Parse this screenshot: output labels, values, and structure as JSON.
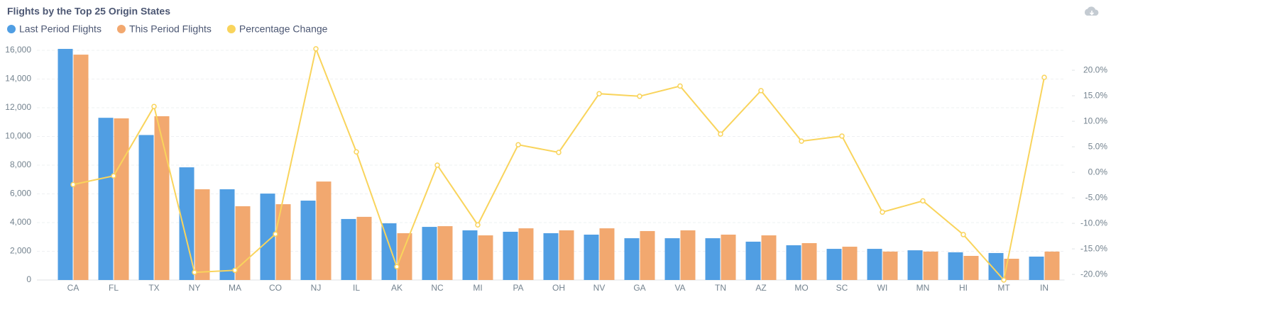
{
  "chart_data": {
    "type": "bar-line",
    "title": "Flights by the Top 25 Origin States",
    "categories": [
      "CA",
      "FL",
      "TX",
      "NY",
      "MA",
      "CO",
      "NJ",
      "IL",
      "AK",
      "NC",
      "MI",
      "PA",
      "OH",
      "NV",
      "GA",
      "VA",
      "TN",
      "AZ",
      "MO",
      "SC",
      "WI",
      "MN",
      "HI",
      "MT",
      "IN"
    ],
    "series": [
      {
        "name": "Last Period Flights",
        "type": "bar",
        "color": "#509ee3",
        "values": [
          16100,
          11300,
          10100,
          7850,
          6320,
          6020,
          5530,
          4250,
          3950,
          3700,
          3460,
          3360,
          3260,
          3160,
          2910,
          2910,
          2910,
          2670,
          2420,
          2170,
          2170,
          2070,
          1930,
          1880,
          1630
        ]
      },
      {
        "name": "This Period Flights",
        "type": "bar",
        "color": "#f2a86f",
        "values": [
          15700,
          11260,
          11410,
          6320,
          5140,
          5280,
          6860,
          4400,
          3260,
          3750,
          3110,
          3600,
          3460,
          3600,
          3410,
          3460,
          3160,
          3110,
          2570,
          2320,
          1980,
          1980,
          1680,
          1480,
          1980
        ]
      },
      {
        "name": "Percentage Change",
        "type": "line",
        "axis": "y2",
        "color": "#f9d45c",
        "values": [
          -2.4,
          -0.7,
          12.9,
          -19.6,
          -19.2,
          -12.1,
          24.2,
          4.0,
          -18.5,
          1.4,
          -10.3,
          5.4,
          3.9,
          15.4,
          14.9,
          16.9,
          7.5,
          16.0,
          6.1,
          7.1,
          -7.8,
          -5.6,
          -12.2,
          -21.1,
          18.6
        ]
      }
    ],
    "ylim": [
      0,
      16000
    ],
    "yticks": [
      0,
      {
        "value": 2000,
        "label": "2,000"
      },
      {
        "value": 4000,
        "label": "4,000"
      },
      {
        "value": 6000,
        "label": "6,000"
      },
      {
        "value": 8000,
        "label": "8,000"
      },
      {
        "value": 10000,
        "label": "10,000"
      },
      {
        "value": 12000,
        "label": "12,000"
      },
      {
        "value": 14000,
        "label": "14,000"
      },
      {
        "value": 16000,
        "label": "16,000"
      }
    ],
    "y2lim": [
      -21.1,
      23.9
    ],
    "y2ticks": [
      {
        "value": -20,
        "label": "-20.0%"
      },
      {
        "value": -15,
        "label": "-15.0%"
      },
      {
        "value": -10,
        "label": "-10.0%"
      },
      {
        "value": -5,
        "label": "-5.0%"
      },
      {
        "value": 0,
        "label": "0.0%"
      },
      {
        "value": 5,
        "label": "5.0%"
      },
      {
        "value": 10,
        "label": "10.0%"
      },
      {
        "value": 15,
        "label": "15.0%"
      },
      {
        "value": 20,
        "label": "20.0%"
      }
    ],
    "grid": true
  }
}
